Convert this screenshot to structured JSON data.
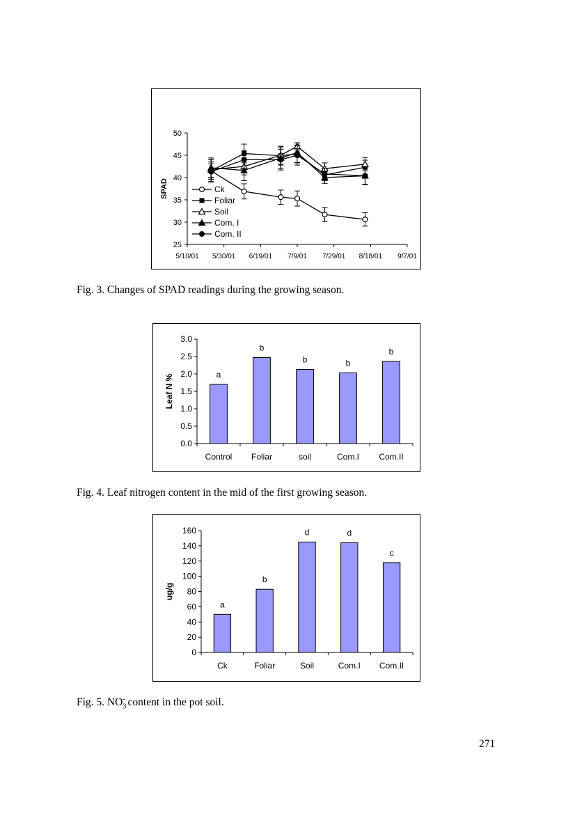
{
  "page_number": "271",
  "figures": [
    {
      "caption": "Fig. 3. Changes of SPAD readings during the growing season.",
      "chart_data": {
        "type": "line",
        "ylabel": "SPAD",
        "xlabel": "",
        "x_ticks": [
          "5/10/01",
          "5/30/01",
          "6/19/01",
          "7/9/01",
          "7/29/01",
          "8/18/01",
          "9/7/01"
        ],
        "x_range": [
          "2001-05-10",
          "2001-09-07"
        ],
        "ylim": [
          25,
          50
        ],
        "y_ticks": [
          25,
          30,
          35,
          40,
          45,
          50
        ],
        "x": [
          "2001-05-23",
          "2001-06-10",
          "2001-06-30",
          "2001-07-09",
          "2001-07-24",
          "2001-08-15"
        ],
        "legend_position": "lower-left",
        "series": [
          {
            "name": "Ck",
            "marker": "open-circle",
            "values": [
              41.5,
              36.9,
              35.6,
              35.3,
              31.7,
              30.6
            ],
            "error": [
              1.6,
              1.7,
              1.6,
              1.7,
              1.6,
              1.5
            ]
          },
          {
            "name": "Foliar",
            "marker": "filled-square",
            "values": [
              41.5,
              45.4,
              44.9,
              45.3,
              40.6,
              42.3
            ],
            "error": [
              2.5,
              2.1,
              2.1,
              2.0,
              1.3,
              1.6
            ]
          },
          {
            "name": "Soil",
            "marker": "open-triangle",
            "values": [
              41.8,
              42.5,
              45.0,
              47.0,
              42.0,
              43.0
            ],
            "error": [
              2.2,
              1.9,
              2.0,
              0.8,
              1.3,
              1.5
            ]
          },
          {
            "name": "Com. I",
            "marker": "filled-triangle",
            "values": [
              42.2,
              41.6,
              44.4,
              45.6,
              40.0,
              40.4
            ],
            "error": [
              2.2,
              2.3,
              2.3,
              2.2,
              1.3,
              1.9
            ]
          },
          {
            "name": "Com. II",
            "marker": "filled-circle",
            "values": [
              41.3,
              44.0,
              44.0,
              45.0,
              40.8,
              40.4
            ],
            "error": [
              2.2,
              2.1,
              2.3,
              2.2,
              1.3,
              2.0
            ]
          }
        ]
      }
    },
    {
      "caption": "Fig. 4. Leaf nitrogen content in the mid of the first growing season.",
      "chart_data": {
        "type": "bar",
        "ylabel": "Leaf N %",
        "xlabel": "",
        "categories": [
          "Control",
          "Foliar",
          "soil",
          "Com.I",
          "Com.II"
        ],
        "values": [
          1.7,
          2.47,
          2.13,
          2.03,
          2.36
        ],
        "letters": [
          "a",
          "b",
          "b",
          "b",
          "b"
        ],
        "ylim": [
          0,
          3
        ],
        "y_ticks": [
          "0.0",
          "0.5",
          "1.0",
          "1.5",
          "2.0",
          "2.5",
          "3.0"
        ],
        "bar_color": "#9999ff"
      }
    },
    {
      "caption_main": "Fig. 5. NO",
      "caption_sub": "3",
      "caption_sup": "-",
      "caption_rest": " content in the pot soil.",
      "chart_data": {
        "type": "bar",
        "ylabel": "ug/g",
        "xlabel": "",
        "categories": [
          "Ck",
          "Foliar",
          "Soil",
          "Com.I",
          "Com.II"
        ],
        "values": [
          50,
          83,
          145,
          144,
          118
        ],
        "letters": [
          "a",
          "b",
          "d",
          "d",
          "c"
        ],
        "ylim": [
          0,
          160
        ],
        "y_ticks": [
          "0",
          "20",
          "40",
          "60",
          "80",
          "100",
          "120",
          "140",
          "160"
        ],
        "bar_color": "#9999ff"
      }
    }
  ]
}
